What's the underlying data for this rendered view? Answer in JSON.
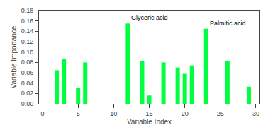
{
  "chart_data": {
    "type": "bar",
    "xlabel": "Variable Index",
    "ylabel": "Variable Importance",
    "x": [
      2,
      3,
      5,
      6,
      12,
      14,
      15,
      17,
      19,
      20,
      21,
      23,
      26,
      29
    ],
    "values": [
      0.065,
      0.086,
      0.03,
      0.08,
      0.155,
      0.082,
      0.016,
      0.08,
      0.07,
      0.058,
      0.074,
      0.145,
      0.082,
      0.033
    ],
    "color": "#00FF41",
    "xlim": [
      -0.5,
      30.5
    ],
    "ylim": [
      0,
      0.18
    ],
    "xticks": [
      0,
      5,
      10,
      15,
      20,
      25,
      30
    ],
    "yticks": [
      {
        "value": 0,
        "label": "0.00"
      },
      0.02,
      0.04,
      0.06,
      0.08,
      {
        "value": 0.1,
        "label": "0.10"
      },
      0.12,
      0.14,
      0.16,
      0.18
    ],
    "annotations": [
      {
        "text": "Glyceric acid",
        "x": 12,
        "y": 0.155
      },
      {
        "text": "Palmitic acid",
        "x": 23,
        "y": 0.145
      }
    ],
    "grid": false
  }
}
